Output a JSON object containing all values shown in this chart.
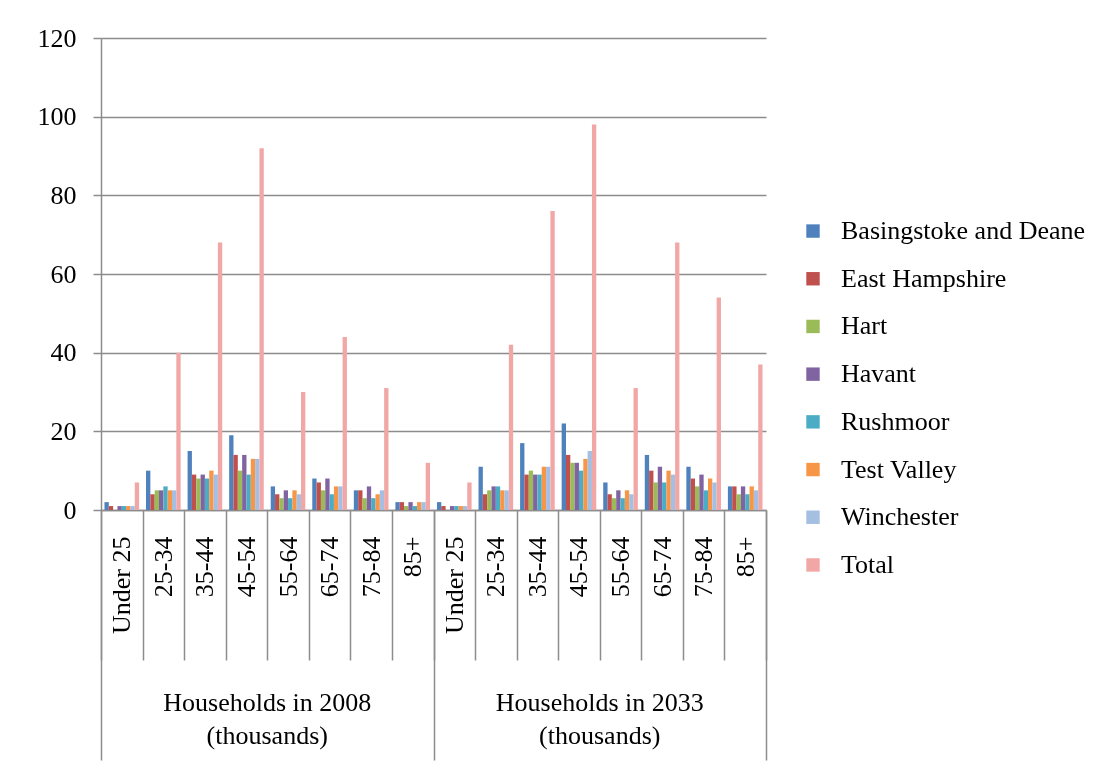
{
  "chart_data": {
    "type": "bar",
    "categories": [
      "Under 25",
      "25-34",
      "35-44",
      "45-54",
      "55-64",
      "65-74",
      "75-84",
      "85+",
      "Under 25",
      "25-34",
      "35-44",
      "45-54",
      "55-64",
      "65-74",
      "75-84",
      "85+"
    ],
    "series": [
      {
        "name": "Basingstoke and Deane",
        "color": "#4f81bd",
        "values": [
          2,
          10,
          15,
          19,
          6,
          8,
          5,
          2,
          2,
          11,
          17,
          22,
          7,
          14,
          11,
          6
        ]
      },
      {
        "name": "East Hampshire",
        "color": "#c0504d",
        "values": [
          1,
          4,
          9,
          14,
          4,
          7,
          5,
          2,
          1,
          4,
          9,
          14,
          4,
          10,
          8,
          6
        ]
      },
      {
        "name": "Hart",
        "color": "#9bbb59",
        "values": [
          0,
          5,
          8,
          10,
          3,
          5,
          3,
          1,
          0,
          5,
          10,
          12,
          3,
          7,
          6,
          4
        ]
      },
      {
        "name": "Havant",
        "color": "#8064a2",
        "values": [
          1,
          5,
          9,
          14,
          5,
          8,
          6,
          2,
          1,
          6,
          9,
          12,
          5,
          11,
          9,
          6
        ]
      },
      {
        "name": "Rushmoor",
        "color": "#4bacc6",
        "values": [
          1,
          6,
          8,
          9,
          3,
          4,
          3,
          1,
          1,
          6,
          9,
          10,
          3,
          7,
          5,
          4
        ]
      },
      {
        "name": "Test Valley",
        "color": "#f79646",
        "values": [
          1,
          5,
          10,
          13,
          5,
          6,
          4,
          2,
          1,
          5,
          11,
          13,
          5,
          10,
          8,
          6
        ]
      },
      {
        "name": "Winchester",
        "color": "#a5bfe3",
        "values": [
          1,
          5,
          9,
          13,
          4,
          6,
          5,
          2,
          1,
          5,
          11,
          15,
          4,
          9,
          7,
          5
        ]
      },
      {
        "name": "Total",
        "color": "#f2a7a7",
        "values": [
          7,
          40,
          68,
          92,
          30,
          44,
          31,
          12,
          7,
          42,
          76,
          98,
          31,
          68,
          54,
          37
        ]
      }
    ],
    "annotations": [
      "Households in 2008 (thousands)",
      "Households in 2033 (thousands)"
    ],
    "ylim": [
      0,
      120
    ],
    "yticks": [
      0,
      20,
      40,
      60,
      80,
      100,
      120
    ],
    "grid": "y",
    "legend": "right"
  }
}
